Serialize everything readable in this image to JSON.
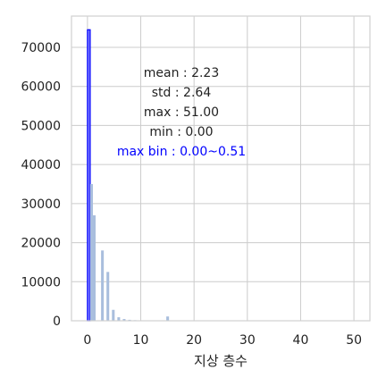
{
  "chart_data": {
    "type": "bar",
    "xlabel": "지상 층수",
    "ylabel": "",
    "xlim": [
      -3,
      53
    ],
    "ylim": [
      0,
      78000
    ],
    "xticks": [
      0,
      10,
      20,
      30,
      40,
      50
    ],
    "yticks": [
      0,
      10000,
      20000,
      30000,
      40000,
      50000,
      60000,
      70000
    ],
    "grid": true,
    "bin_width": 0.51,
    "bins": [
      {
        "x": 0.0,
        "value": 74500,
        "highlight": true
      },
      {
        "x": 0.51,
        "value": 35000
      },
      {
        "x": 1.02,
        "value": 27000
      },
      {
        "x": 2.55,
        "value": 18000
      },
      {
        "x": 3.57,
        "value": 12500
      },
      {
        "x": 4.59,
        "value": 2800
      },
      {
        "x": 5.61,
        "value": 900
      },
      {
        "x": 6.63,
        "value": 450
      },
      {
        "x": 7.65,
        "value": 250
      },
      {
        "x": 8.67,
        "value": 150
      },
      {
        "x": 9.69,
        "value": 100
      },
      {
        "x": 10.71,
        "value": 80
      },
      {
        "x": 11.73,
        "value": 60
      },
      {
        "x": 12.75,
        "value": 40
      },
      {
        "x": 13.77,
        "value": 30
      },
      {
        "x": 14.79,
        "value": 1100
      },
      {
        "x": 15.81,
        "value": 60
      },
      {
        "x": 16.83,
        "value": 20
      }
    ],
    "annotations": [
      {
        "key": "mean",
        "text": "mean : 2.23"
      },
      {
        "key": "std",
        "text": "std : 2.64"
      },
      {
        "key": "max",
        "text": "max : 51.00"
      },
      {
        "key": "min",
        "text": "min : 0.00"
      },
      {
        "key": "max_bin",
        "text": "max bin : 0.00~0.51",
        "color": "#0000ff"
      }
    ],
    "colors": {
      "bar": "#a9bedd",
      "highlight_fill": "#7b7bff",
      "highlight_edge": "#0000ff",
      "grid": "#cccccc",
      "axes": "#d0d0d0"
    }
  }
}
